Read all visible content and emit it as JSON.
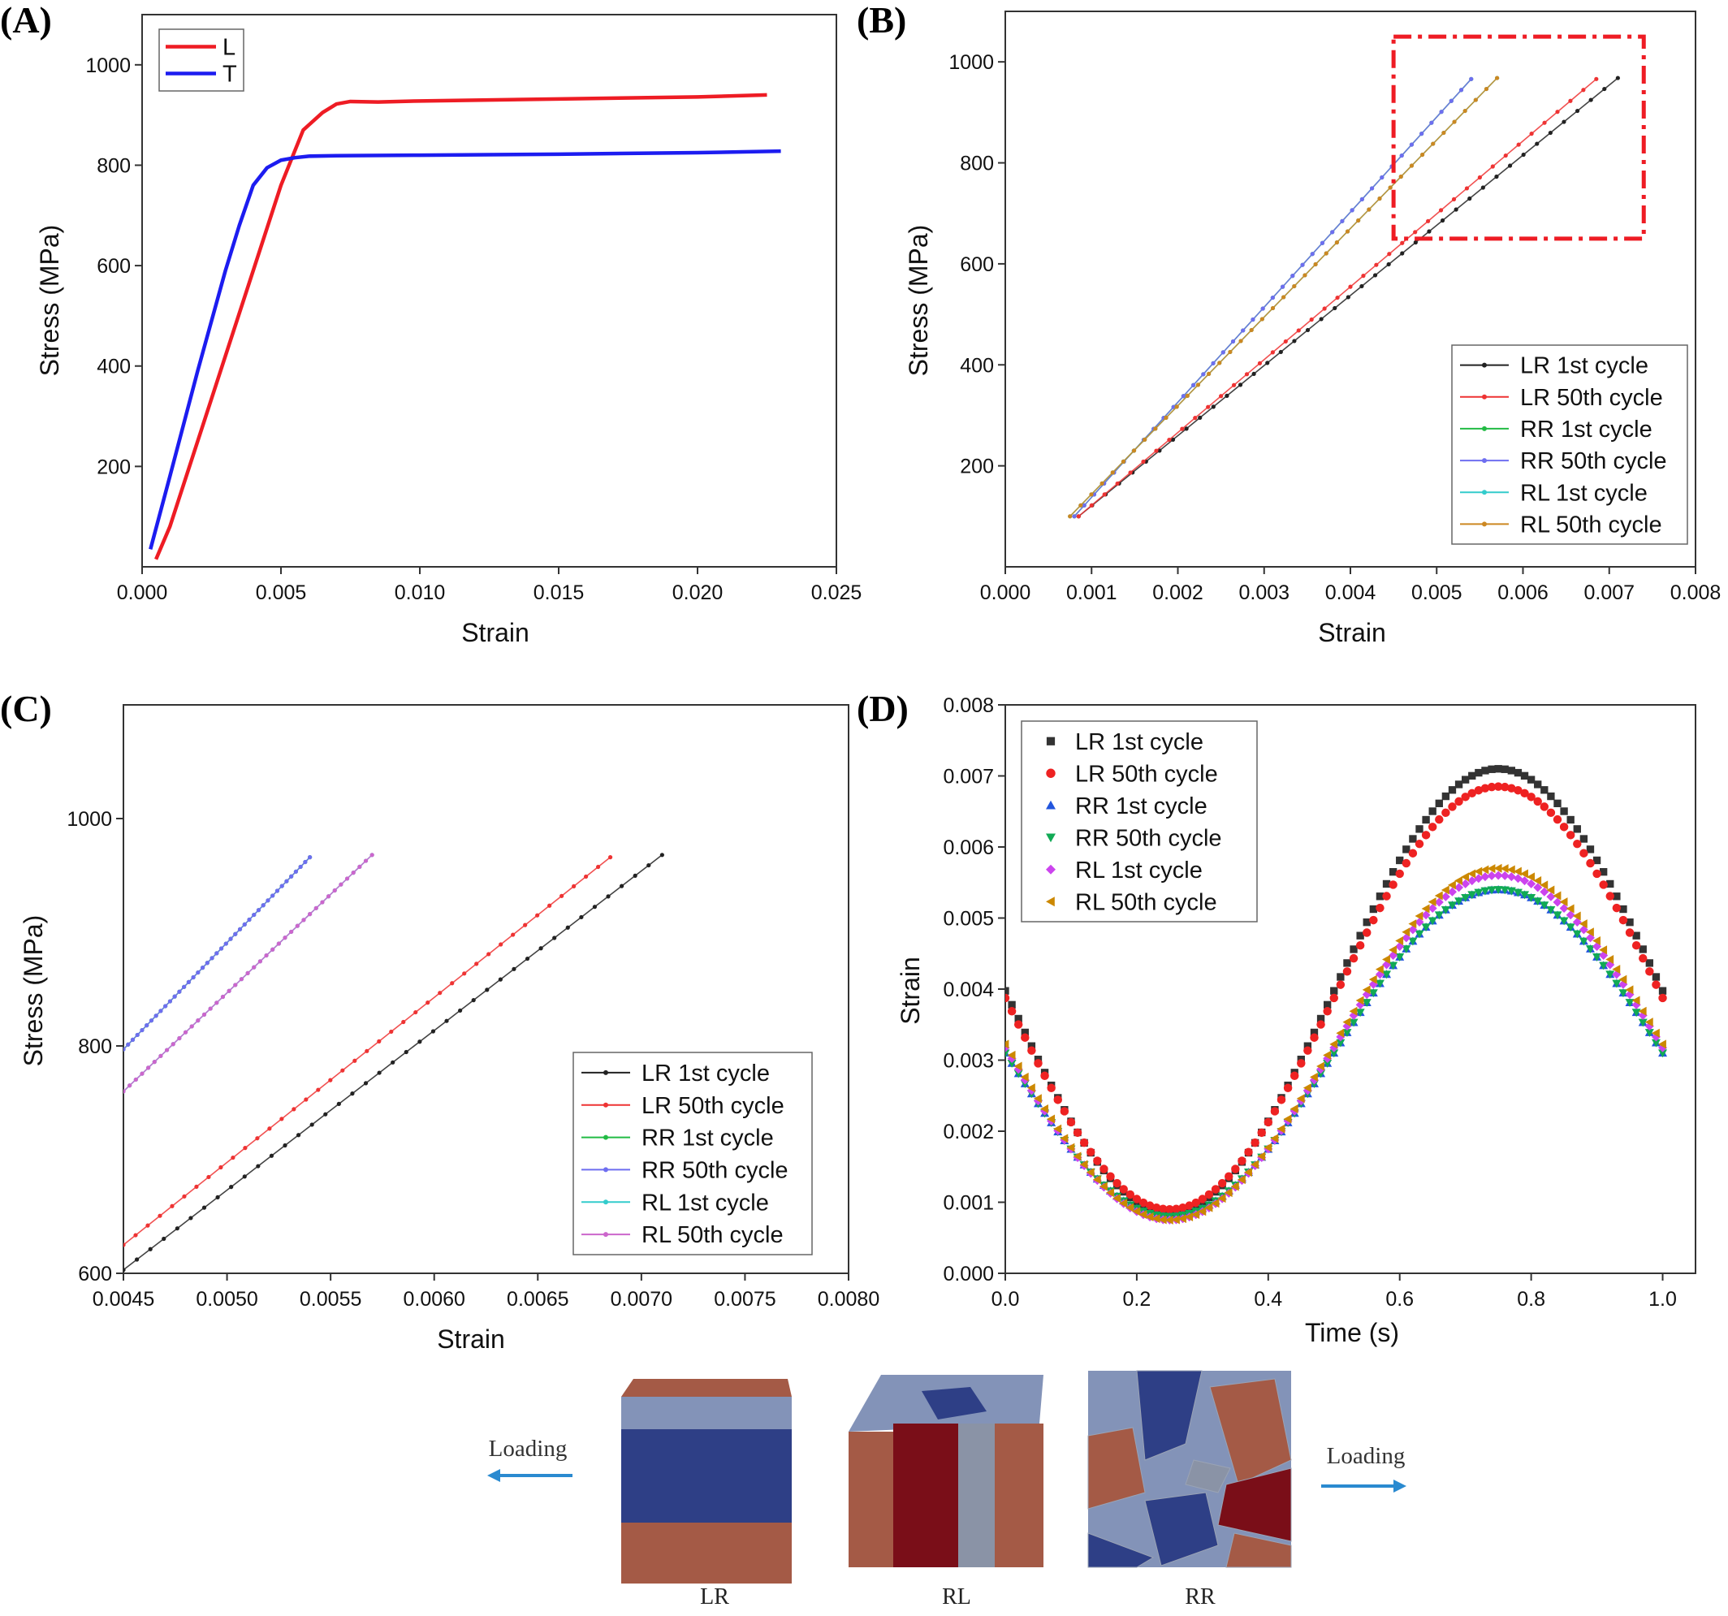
{
  "panels": [
    {
      "id": "A",
      "letter": "(A)",
      "chart_data": {
        "type": "line",
        "xlabel": "Strain",
        "ylabel": "Stress (MPa)",
        "xlim": [
          0.0,
          0.025
        ],
        "ylim": [
          0,
          1100
        ],
        "xticks": [
          "0.000",
          "0.005",
          "0.010",
          "0.015",
          "0.020",
          "0.025"
        ],
        "yticks": [
          "200",
          "400",
          "600",
          "800",
          "1000"
        ],
        "legend_position": "top-left",
        "series": [
          {
            "name": "L",
            "color": "#ee1c24",
            "x": [
              0.0005,
              0.001,
              0.002,
              0.003,
              0.004,
              0.005,
              0.0058,
              0.0065,
              0.007,
              0.0075,
              0.0085,
              0.01,
              0.015,
              0.02,
              0.0225
            ],
            "y": [
              15,
              80,
              250,
              420,
              590,
              760,
              870,
              905,
              922,
              927,
              926,
              928,
              932,
              936,
              940
            ]
          },
          {
            "name": "T",
            "color": "#1c1cf0",
            "x": [
              0.0003,
              0.001,
              0.002,
              0.003,
              0.0035,
              0.004,
              0.0045,
              0.005,
              0.0055,
              0.006,
              0.007,
              0.01,
              0.015,
              0.02,
              0.023
            ],
            "y": [
              35,
              180,
              390,
              590,
              680,
              760,
              795,
              810,
              815,
              818,
              819,
              820,
              822,
              825,
              828
            ]
          }
        ]
      }
    },
    {
      "id": "B",
      "letter": "(B)",
      "chart_data": {
        "type": "line",
        "xlabel": "Strain",
        "ylabel": "Stress (MPa)",
        "xlim": [
          0.0,
          0.008
        ],
        "ylim": [
          0,
          1100
        ],
        "xticks": [
          "0.000",
          "0.001",
          "0.002",
          "0.003",
          "0.004",
          "0.005",
          "0.006",
          "0.007",
          "0.008"
        ],
        "yticks": [
          "200",
          "400",
          "600",
          "800",
          "1000"
        ],
        "legend_position": "bottom-right",
        "annotation": {
          "type": "dash-dot box",
          "color": "#ee1c24",
          "x": [
            0.0045,
            0.0074
          ],
          "y": [
            650,
            1050
          ]
        },
        "series": [
          {
            "name": "LR 1st cycle",
            "color": "#222222",
            "marker": "dot",
            "x": [
              0.00085,
              0.0071
            ],
            "y": [
              100,
              968
            ]
          },
          {
            "name": "LR 50th cycle",
            "color": "#ee3333",
            "marker": "dot",
            "x": [
              0.00085,
              0.00685
            ],
            "y": [
              100,
              966
            ]
          },
          {
            "name": "RR 1st cycle",
            "color": "#22bb44",
            "marker": "dot",
            "x": [
              0.0008,
              0.0054
            ],
            "y": [
              100,
              966
            ]
          },
          {
            "name": "RR 50th cycle",
            "color": "#6e6ef0",
            "marker": "dot",
            "x": [
              0.0008,
              0.0054
            ],
            "y": [
              100,
              966
            ]
          },
          {
            "name": "RL 1st cycle",
            "color": "#33cccc",
            "marker": "dot",
            "x": [
              0.00075,
              0.0057
            ],
            "y": [
              100,
              968
            ]
          },
          {
            "name": "RL 50th cycle",
            "color": "#cc8822",
            "marker": "dot",
            "x": [
              0.00075,
              0.0057
            ],
            "y": [
              100,
              968
            ]
          }
        ]
      }
    },
    {
      "id": "C",
      "letter": "(C)",
      "chart_data": {
        "type": "line",
        "xlabel": "Strain",
        "ylabel": "Stress (MPa)",
        "xlim": [
          0.0045,
          0.008
        ],
        "ylim": [
          600,
          1100
        ],
        "xticks": [
          "0.0045",
          "0.0050",
          "0.0055",
          "0.0060",
          "0.0065",
          "0.0070",
          "0.0075",
          "0.0080"
        ],
        "yticks": [
          "600",
          "800",
          "1000"
        ],
        "legend_position": "bottom-right",
        "series": [
          {
            "name": "LR 1st cycle",
            "color": "#222222",
            "marker": "dot",
            "x": [
              0.0045,
              0.0071
            ],
            "y": [
              603,
              968
            ]
          },
          {
            "name": "LR 50th cycle",
            "color": "#ee3333",
            "marker": "dot",
            "x": [
              0.0045,
              0.00685
            ],
            "y": [
              625,
              966
            ]
          },
          {
            "name": "RR 1st cycle",
            "color": "#22bb44",
            "marker": "dot",
            "x": [
              0.0045,
              0.0054
            ],
            "y": [
              797,
              966
            ]
          },
          {
            "name": "RR 50th cycle",
            "color": "#6e6ef0",
            "marker": "dot",
            "x": [
              0.0045,
              0.0054
            ],
            "y": [
              797,
              966
            ]
          },
          {
            "name": "RL 1st cycle",
            "color": "#33cccc",
            "marker": "dot",
            "x": [
              0.0045,
              0.0057
            ],
            "y": [
              760,
              968
            ]
          },
          {
            "name": "RL 50th cycle",
            "color": "#cc66cc",
            "marker": "dot",
            "x": [
              0.0045,
              0.0057
            ],
            "y": [
              760,
              968
            ]
          }
        ]
      }
    },
    {
      "id": "D",
      "letter": "(D)",
      "chart_data": {
        "type": "scatter",
        "xlabel": "Time (s)",
        "ylabel": "Strain",
        "xlim": [
          0.0,
          1.05
        ],
        "ylim": [
          0.0,
          0.008
        ],
        "xticks": [
          "0.0",
          "0.2",
          "0.4",
          "0.6",
          "0.8",
          "1.0"
        ],
        "yticks": [
          "0.000",
          "0.001",
          "0.002",
          "0.003",
          "0.004",
          "0.005",
          "0.006",
          "0.007",
          "0.008"
        ],
        "legend_position": "top-left",
        "series": [
          {
            "name": "LR 1st cycle",
            "color": "#333333",
            "marker": "square",
            "model": "sine",
            "t": [
              0,
              1
            ],
            "min": 0.00085,
            "max": 0.0071,
            "x": [
              0.0,
              0.25,
              0.5,
              0.75,
              1.0
            ],
            "y": [
              0.00398,
              0.00085,
              0.00398,
              0.0071,
              0.00398
            ]
          },
          {
            "name": "LR 50th cycle",
            "color": "#ee2222",
            "marker": "circle",
            "model": "sine",
            "t": [
              0,
              1
            ],
            "min": 0.0009,
            "max": 0.00685,
            "x": [
              0.0,
              0.25,
              0.5,
              0.75,
              1.0
            ],
            "y": [
              0.00388,
              0.0009,
              0.00388,
              0.00685,
              0.00388
            ]
          },
          {
            "name": "RR 1st cycle",
            "color": "#2255dd",
            "marker": "triangle-up",
            "model": "sine",
            "t": [
              0,
              1
            ],
            "min": 0.0008,
            "max": 0.0054,
            "x": [
              0.0,
              0.25,
              0.5,
              0.75,
              1.0
            ],
            "y": [
              0.0031,
              0.0008,
              0.0031,
              0.0054,
              0.0031
            ]
          },
          {
            "name": "RR 50th cycle",
            "color": "#11aa55",
            "marker": "triangle-down",
            "model": "sine",
            "t": [
              0,
              1
            ],
            "min": 0.0008,
            "max": 0.0054,
            "x": [
              0.0,
              0.25,
              0.5,
              0.75,
              1.0
            ],
            "y": [
              0.0031,
              0.0008,
              0.0031,
              0.0054,
              0.0031
            ]
          },
          {
            "name": "RL 1st cycle",
            "color": "#cc44ee",
            "marker": "diamond",
            "model": "sine",
            "t": [
              0,
              1
            ],
            "min": 0.00075,
            "max": 0.0056,
            "x": [
              0.0,
              0.25,
              0.5,
              0.75,
              1.0
            ],
            "y": [
              0.00318,
              0.00075,
              0.00318,
              0.0056,
              0.00318
            ]
          },
          {
            "name": "RL 50th cycle",
            "color": "#cc8800",
            "marker": "triangle-left",
            "model": "sine",
            "t": [
              0,
              1
            ],
            "min": 0.00075,
            "max": 0.0057,
            "x": [
              0.0,
              0.25,
              0.5,
              0.75,
              1.0
            ],
            "y": [
              0.00323,
              0.00075,
              0.00323,
              0.0057,
              0.00323
            ]
          }
        ]
      }
    }
  ],
  "models": {
    "loading_left": "Loading",
    "loading_right": "Loading",
    "cubes": [
      {
        "label": "LR"
      },
      {
        "label": "RL"
      },
      {
        "label": "RR"
      }
    ],
    "colors": {
      "dark_blue": "#2e3f86",
      "light_blue": "#8393b8",
      "brown": "#a45a46",
      "dark_red": "#7a0e18",
      "grey": "#8a93a6",
      "arrow": "#2a8ad0"
    }
  }
}
